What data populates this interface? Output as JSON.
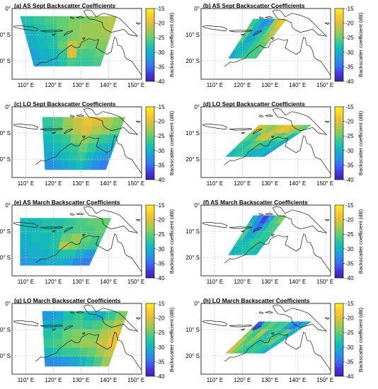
{
  "colors": {
    "ocean": "#ffffff",
    "coast": "#1a1a1a",
    "grid": "#bdbdbd",
    "colormap": [
      "#3d26a8",
      "#4433d6",
      "#3e65f6",
      "#2a8ce6",
      "#1aa6d4",
      "#13bfb3",
      "#3fca8b",
      "#7ccd62",
      "#b8c646",
      "#e8bf35",
      "#fad02b",
      "#f9f11e"
    ]
  },
  "chart_data": [
    {
      "type": "heatmap",
      "title": "(a) AS Sept Backscatter Coefficients",
      "x_ticks": [
        "110° E",
        "120° E",
        "130° E",
        "140° E",
        "150° E"
      ],
      "y_ticks": [
        "0°",
        "10° S",
        "20° S"
      ],
      "xlim": [
        105,
        152
      ],
      "ylim": [
        -27,
        0
      ],
      "colorbar": {
        "label": "Backscatter coefficient (dB)",
        "ticks": [
          "-15",
          "-20",
          "-25",
          "-30",
          "-35",
          "-40"
        ],
        "range": [
          -40,
          -15
        ]
      },
      "swath": {
        "top_lon": [
          108,
          143
        ],
        "bottom_lon": [
          113,
          137
        ],
        "lat_top": -3,
        "lat_bottom": -22
      },
      "cells": [
        [
          -28,
          -27,
          -26,
          -25,
          -24,
          -24,
          -23,
          -22
        ],
        [
          -29,
          -28,
          -27,
          -25,
          -24,
          -23,
          -23,
          -22
        ],
        [
          -30,
          -29,
          -28,
          -26,
          -24,
          -23,
          -23,
          -23
        ],
        [
          -30,
          -29,
          -28,
          -25,
          -21,
          -24,
          -25,
          -24
        ],
        [
          -31,
          -30,
          -29,
          -27,
          -20,
          -26,
          -26,
          -25
        ],
        [
          -31,
          -30,
          -30,
          -28,
          -26,
          -27,
          -27,
          -26
        ]
      ]
    },
    {
      "type": "heatmap",
      "title": "(b) AS Sept Backscatter Coefficients",
      "x_ticks": [
        "110° E",
        "120° E",
        "130° E",
        "140° E",
        "150° E"
      ],
      "y_ticks": [
        "0°",
        "10° S",
        "20° S"
      ],
      "xlim": [
        105,
        152
      ],
      "ylim": [
        -27,
        0
      ],
      "colorbar": {
        "label": "Backscatter coefficient (dB)",
        "ticks": [
          "-15",
          "-20",
          "-25",
          "-30",
          "-35",
          "-40"
        ],
        "range": [
          -40,
          -15
        ]
      },
      "swath": {
        "top_lon": [
          124,
          136
        ],
        "bottom_lon": [
          115,
          125
        ],
        "lat_top": -4,
        "lat_bottom": -19
      },
      "cells": [
        [
          -27,
          -29,
          -33,
          -31,
          -22,
          -19
        ],
        [
          -25,
          -30,
          -32,
          -28,
          -24,
          -21
        ],
        [
          -26,
          -31,
          -30,
          -27,
          -25,
          -23
        ],
        [
          -28,
          -30,
          -29,
          -27,
          -26,
          -25
        ],
        [
          -31,
          -29,
          -28,
          -27,
          -26,
          -26
        ]
      ]
    },
    {
      "type": "heatmap",
      "title": "(c) LO Sept Backscatter Coefficients",
      "x_ticks": [
        "110° E",
        "120° E",
        "130° E",
        "140° E",
        "150° E"
      ],
      "y_ticks": [
        "0°",
        "10° S",
        "20° S"
      ],
      "xlim": [
        105,
        152
      ],
      "ylim": [
        -27,
        0
      ],
      "colorbar": {
        "label": "Backscatter coefficient (dB)",
        "ticks": [
          "-15",
          "-20",
          "-25",
          "-30",
          "-35",
          "-40"
        ],
        "range": [
          -40,
          -15
        ]
      },
      "swath": {
        "top_lon": [
          116,
          146
        ],
        "bottom_lon": [
          117,
          139
        ],
        "lat_top": -4,
        "lat_bottom": -24
      },
      "cells": [
        [
          -27,
          -26,
          -23,
          -21,
          -19,
          -20,
          -22,
          -24
        ],
        [
          -28,
          -26,
          -24,
          -22,
          -20,
          -22,
          -23,
          -25
        ],
        [
          -29,
          -28,
          -27,
          -24,
          -23,
          -25,
          -27,
          -28
        ],
        [
          -30,
          -29,
          -28,
          -27,
          -25,
          -27,
          -29,
          -30
        ],
        [
          -31,
          -30,
          -29,
          -28,
          -27,
          -29,
          -31,
          -32
        ],
        [
          -33,
          -32,
          -31,
          -30,
          -29,
          -31,
          -33,
          -34
        ]
      ]
    },
    {
      "type": "heatmap",
      "title": "(d) LO Sept Backscatter Coefficients",
      "x_ticks": [
        "110° E",
        "120° E",
        "130° E",
        "140° E",
        "150° E"
      ],
      "y_ticks": [
        "0°",
        "10° S",
        "20° S"
      ],
      "xlim": [
        105,
        152
      ],
      "ylim": [
        -27,
        0
      ],
      "colorbar": {
        "label": "Backscatter coefficient (dB)",
        "ticks": [
          "-15",
          "-20",
          "-25",
          "-30",
          "-35",
          "-40"
        ],
        "range": [
          -40,
          -15
        ]
      },
      "swath": {
        "top_lon": [
          126,
          145
        ],
        "bottom_lon": [
          114,
          128
        ],
        "lat_top": -7,
        "lat_bottom": -19
      },
      "cells": [
        [
          -21,
          -22,
          -24,
          -21,
          -19,
          -20,
          -23,
          -25
        ],
        [
          -25,
          -27,
          -22,
          -20,
          -24,
          -26,
          -24,
          -29
        ],
        [
          -27,
          -28,
          -26,
          -25,
          -27,
          -29,
          -28,
          -30
        ],
        [
          -29,
          -28,
          -27,
          -28,
          -30,
          -30,
          -29,
          -31
        ]
      ]
    },
    {
      "type": "heatmap",
      "title": "(e) AS March Backscatter Coefficients",
      "x_ticks": [
        "110° E",
        "120° E",
        "130° E",
        "140° E",
        "150° E"
      ],
      "y_ticks": [
        "0°",
        "10° S",
        "20° S"
      ],
      "xlim": [
        105,
        152
      ],
      "ylim": [
        -27,
        0
      ],
      "colorbar": {
        "label": "Backscatter coefficient (dB)",
        "ticks": [
          "-15",
          "-20",
          "-25",
          "-30",
          "-35",
          "-40"
        ],
        "range": [
          -40,
          -15
        ]
      },
      "swath": {
        "top_lon": [
          108,
          141
        ],
        "bottom_lon": [
          108,
          133
        ],
        "lat_top": -5,
        "lat_bottom": -23
      },
      "cells": [
        [
          -29,
          -29,
          -28,
          -28,
          -27,
          -26,
          -25,
          -25
        ],
        [
          -29,
          -29,
          -28,
          -28,
          -27,
          -26,
          -26,
          -25
        ],
        [
          -30,
          -29,
          -29,
          -28,
          -25,
          -23,
          -25,
          -26
        ],
        [
          -30,
          -30,
          -29,
          -28,
          -22,
          -24,
          -26,
          -27
        ],
        [
          -31,
          -30,
          -30,
          -29,
          -28,
          -28,
          -30,
          -32
        ],
        [
          -32,
          -31,
          -31,
          -30,
          -30,
          -31,
          -33,
          -34
        ]
      ]
    },
    {
      "type": "heatmap",
      "title": "(f) AS March Backscatter Coefficients",
      "x_ticks": [
        "110° E",
        "120° E",
        "130° E",
        "140° E",
        "150° E"
      ],
      "y_ticks": [
        "0°",
        "10° S",
        "20° S"
      ],
      "xlim": [
        105,
        152
      ],
      "ylim": [
        -27,
        0
      ],
      "colorbar": {
        "label": "Backscatter coefficient (dB)",
        "ticks": [
          "-15",
          "-20",
          "-25",
          "-30",
          "-35",
          "-40"
        ],
        "range": [
          -40,
          -15
        ]
      },
      "swath": {
        "top_lon": [
          124,
          136
        ],
        "bottom_lon": [
          115,
          125
        ],
        "lat_top": -4,
        "lat_bottom": -19
      },
      "cells": [
        [
          -30,
          -33,
          -37,
          -32,
          -26,
          -24
        ],
        [
          -27,
          -33,
          -35,
          -30,
          -27,
          -26
        ],
        [
          -26,
          -31,
          -30,
          -28,
          -27,
          -27
        ],
        [
          -28,
          -29,
          -28,
          -27,
          -27,
          -28
        ],
        [
          -30,
          -29,
          -28,
          -28,
          -28,
          -29
        ]
      ]
    },
    {
      "type": "heatmap",
      "title": "(g) LO March Backscatter Coefficients",
      "x_ticks": [
        "110° E",
        "120° E",
        "130° E",
        "140° E",
        "150° E"
      ],
      "y_ticks": [
        "0°",
        "10° S",
        "20° S"
      ],
      "xlim": [
        105,
        152
      ],
      "ylim": [
        -27,
        0
      ],
      "colorbar": {
        "label": "Backscatter coefficient (dB)",
        "ticks": [
          "-15",
          "-20",
          "-25",
          "-30",
          "-35",
          "-40"
        ],
        "range": [
          -40,
          -15
        ]
      },
      "swath": {
        "top_lon": [
          116,
          147
        ],
        "bottom_lon": [
          117,
          140
        ],
        "lat_top": -3,
        "lat_bottom": -24
      },
      "cells": [
        [
          -32,
          -31,
          -28,
          -27,
          -29,
          -30,
          -27,
          -24
        ],
        [
          -30,
          -29,
          -27,
          -26,
          -27,
          -26,
          -24,
          -22
        ],
        [
          -28,
          -27,
          -25,
          -24,
          -24,
          -24,
          -22,
          -20
        ],
        [
          -27,
          -26,
          -25,
          -24,
          -23,
          -23,
          -21,
          -19
        ],
        [
          -29,
          -28,
          -27,
          -27,
          -26,
          -25,
          -23,
          -21
        ],
        [
          -33,
          -33,
          -32,
          -31,
          -30,
          -28,
          -26,
          -23
        ]
      ]
    },
    {
      "type": "heatmap",
      "title": "(h) LO March Backscatter Coefficients",
      "x_ticks": [
        "110° E",
        "120° E",
        "130° E",
        "140° E",
        "150° E"
      ],
      "y_ticks": [
        "0°",
        "10° S",
        "20° S"
      ],
      "xlim": [
        105,
        152
      ],
      "ylim": [
        -27,
        0
      ],
      "colorbar": {
        "label": "Backscatter coefficient (dB)",
        "ticks": [
          "-15",
          "-20",
          "-25",
          "-30",
          "-35",
          "-40"
        ],
        "range": [
          -40,
          -15
        ]
      },
      "swath": {
        "top_lon": [
          126,
          145
        ],
        "bottom_lon": [
          114,
          128
        ],
        "lat_top": -7,
        "lat_bottom": -19
      },
      "cells": [
        [
          -36,
          -27,
          -25,
          -27,
          -26,
          -31,
          -34,
          -30
        ],
        [
          -24,
          -27,
          -22,
          -28,
          -26,
          -28,
          -25,
          -30
        ],
        [
          -22,
          -26,
          -24,
          -27,
          -28,
          -26,
          -25,
          -29
        ],
        [
          -21,
          -24,
          -26,
          -28,
          -27,
          -27,
          -28,
          -30
        ]
      ]
    }
  ]
}
